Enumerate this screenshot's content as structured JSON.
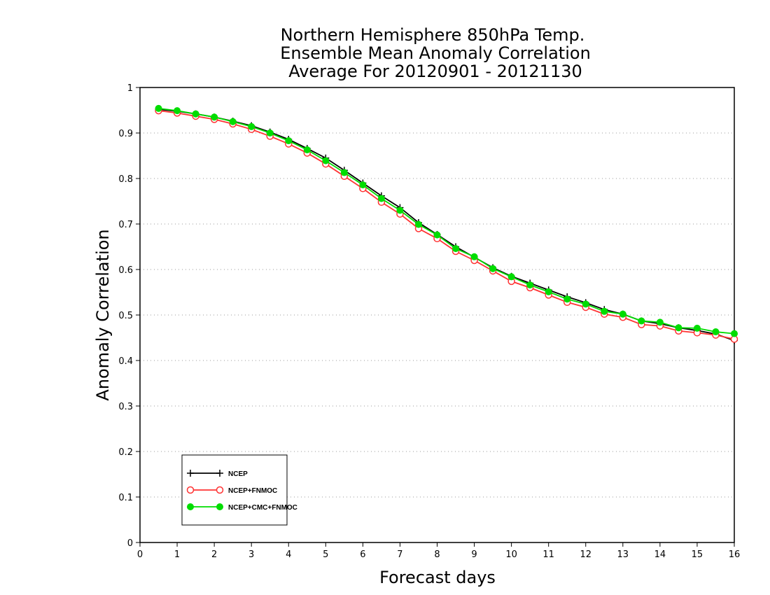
{
  "chart_data": {
    "type": "line",
    "title_lines": [
      "Northern Hemisphere 850hPa Temp.",
      "Ensemble Mean Anomaly Correlation",
      "Average For 20120901 - 20121130"
    ],
    "xlabel": "Forecast days",
    "ylabel": "Anomaly Correlation",
    "xlim": [
      0,
      16
    ],
    "ylim": [
      0,
      1
    ],
    "x_ticks": [
      "0",
      "1",
      "2",
      "3",
      "4",
      "5",
      "6",
      "7",
      "8",
      "9",
      "10",
      "11",
      "12",
      "13",
      "14",
      "15",
      "16"
    ],
    "y_ticks": [
      "0",
      "0.1",
      "0.2",
      "0.3",
      "0.4",
      "0.5",
      "0.6",
      "0.7",
      "0.8",
      "0.9",
      "1"
    ],
    "grid": "horizontal dotted",
    "legend_position": "bottom-left",
    "x": [
      0.5,
      1.0,
      1.5,
      2.0,
      2.5,
      3.0,
      3.5,
      4.0,
      4.5,
      5.0,
      5.5,
      6.0,
      6.5,
      7.0,
      7.5,
      8.0,
      8.5,
      9.0,
      9.5,
      10.0,
      10.5,
      11.0,
      11.5,
      12.0,
      12.5,
      13.0,
      13.5,
      14.0,
      14.5,
      15.0,
      15.5,
      16.0
    ],
    "series": [
      {
        "name": "NCEP",
        "color": "#000000",
        "marker": "plus",
        "values": [
          0.952,
          0.948,
          0.942,
          0.935,
          0.926,
          0.916,
          0.902,
          0.886,
          0.866,
          0.845,
          0.818,
          0.79,
          0.762,
          0.736,
          0.703,
          0.677,
          0.65,
          0.627,
          0.604,
          0.585,
          0.57,
          0.555,
          0.54,
          0.527,
          0.512,
          0.502,
          0.487,
          0.481,
          0.472,
          0.466,
          0.458,
          0.444
        ]
      },
      {
        "name": "NCEP+FNMOC",
        "color": "#ff3333",
        "marker": "open-circle",
        "values": [
          0.949,
          0.944,
          0.937,
          0.93,
          0.92,
          0.908,
          0.893,
          0.876,
          0.856,
          0.832,
          0.805,
          0.778,
          0.748,
          0.722,
          0.69,
          0.668,
          0.64,
          0.62,
          0.597,
          0.574,
          0.56,
          0.544,
          0.528,
          0.517,
          0.502,
          0.495,
          0.479,
          0.476,
          0.465,
          0.461,
          0.456,
          0.447
        ]
      },
      {
        "name": "NCEP+CMC+FNMOC",
        "color": "#00dd00",
        "marker": "filled-circle",
        "values": [
          0.954,
          0.949,
          0.942,
          0.935,
          0.925,
          0.914,
          0.9,
          0.883,
          0.863,
          0.839,
          0.813,
          0.786,
          0.756,
          0.73,
          0.699,
          0.676,
          0.646,
          0.628,
          0.602,
          0.584,
          0.566,
          0.551,
          0.535,
          0.524,
          0.508,
          0.502,
          0.487,
          0.484,
          0.472,
          0.471,
          0.463,
          0.459
        ]
      }
    ]
  }
}
